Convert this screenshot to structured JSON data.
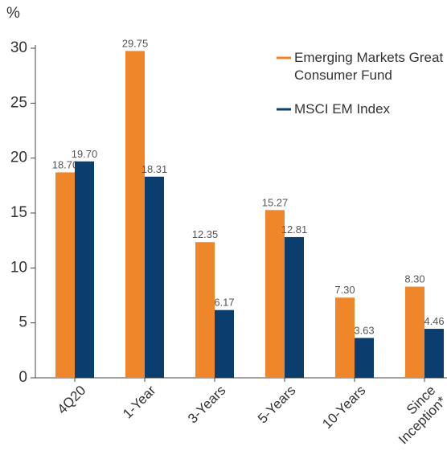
{
  "chart_data": {
    "type": "bar",
    "y_label": "%",
    "categories": [
      "4Q20",
      "1-Year",
      "3-Years",
      "5-Years",
      "10-Years",
      "Since Inception*"
    ],
    "series": [
      {
        "name": "Emerging Markets Great Consumer Fund",
        "color": "#f0862a",
        "values": [
          18.7,
          29.75,
          12.35,
          15.27,
          7.3,
          8.3
        ],
        "value_labels": [
          "18.70",
          "29.75",
          "12.35",
          "15.27",
          "7.30",
          "8.30"
        ]
      },
      {
        "name": "MSCI EM Index",
        "color": "#0b3e6f",
        "values": [
          19.7,
          18.31,
          6.17,
          12.81,
          3.63,
          4.46
        ],
        "value_labels": [
          "19.70",
          "18.31",
          "6.17",
          "12.81",
          "3.63",
          "4.46"
        ]
      }
    ],
    "ylim": [
      0,
      30
    ],
    "yticks": [
      0,
      5,
      10,
      15,
      20,
      25,
      30
    ],
    "legend": "top-right"
  }
}
